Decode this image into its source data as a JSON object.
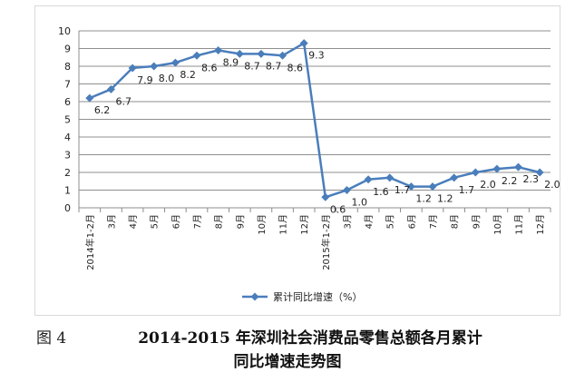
{
  "figure_label": "图 4",
  "title_line1": "2014-2015 年深圳社会消费品零售总额各月累计",
  "title_line2": "同比增速走势图",
  "chart_data": {
    "type": "line",
    "categories": [
      "2014年1-2月",
      "3月",
      "4月",
      "5月",
      "6月",
      "7月",
      "8月",
      "9月",
      "10月",
      "11月",
      "12月",
      "2015年1-2月",
      "3月",
      "4月",
      "5月",
      "6月",
      "7月",
      "8月",
      "9月",
      "10月",
      "11月",
      "12月"
    ],
    "series": [
      {
        "name": "累计同比增速（%）",
        "color": "#4a7ebb",
        "values": [
          6.2,
          6.7,
          7.9,
          8.0,
          8.2,
          8.6,
          8.9,
          8.7,
          8.7,
          8.6,
          9.3,
          0.6,
          1.0,
          1.6,
          1.7,
          1.2,
          1.2,
          1.7,
          2.0,
          2.2,
          2.3,
          2.0
        ]
      }
    ],
    "data_labels": [
      "6.2",
      "6.7",
      "7.9",
      "8.0",
      "8.2",
      "8.6",
      "8.9",
      "8.7",
      "8.7",
      "8.6",
      "9.3",
      "0.6",
      "1.0",
      "1.6",
      "1.7",
      "1.2",
      "1.2",
      "1.7",
      "2.0",
      "2.2",
      "2.3",
      "2.0"
    ],
    "y_ticks": [
      "0",
      "1",
      "2",
      "3",
      "4",
      "5",
      "6",
      "7",
      "8",
      "9",
      "10"
    ],
    "ylim": [
      0,
      10
    ],
    "grid": true,
    "legend_position": "bottom"
  }
}
